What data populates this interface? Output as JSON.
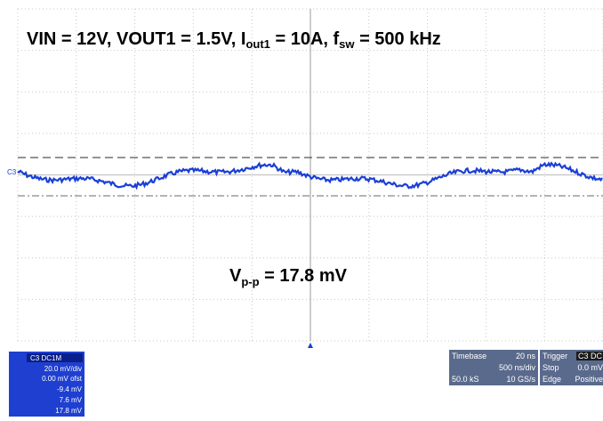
{
  "title": {
    "segments": [
      "VIN = 12V, VOUT1 = 1.5V, I",
      "out1",
      " = 10A, f",
      "sw",
      " = 500 kHz"
    ]
  },
  "annotation": {
    "segments": [
      "V",
      "p-p",
      " = 17.8 mV"
    ]
  },
  "channel_label": "C3",
  "channel_box": {
    "header": "C3  DC1M",
    "lines": [
      "20.0 mV/div",
      "0.00 mV ofst",
      "-9.4 mV",
      "7.6 mV",
      "17.8 mV"
    ]
  },
  "timebase": {
    "label": "Timebase",
    "delay": "20 ns",
    "div": "500 ns/div",
    "samples": "50.0 kS",
    "rate": "10 GS/s"
  },
  "trigger": {
    "label": "Trigger",
    "source": "C3 DC",
    "mode": "Stop",
    "level": "0.0 mV",
    "type": "Edge",
    "slope": "Positive"
  }
}
